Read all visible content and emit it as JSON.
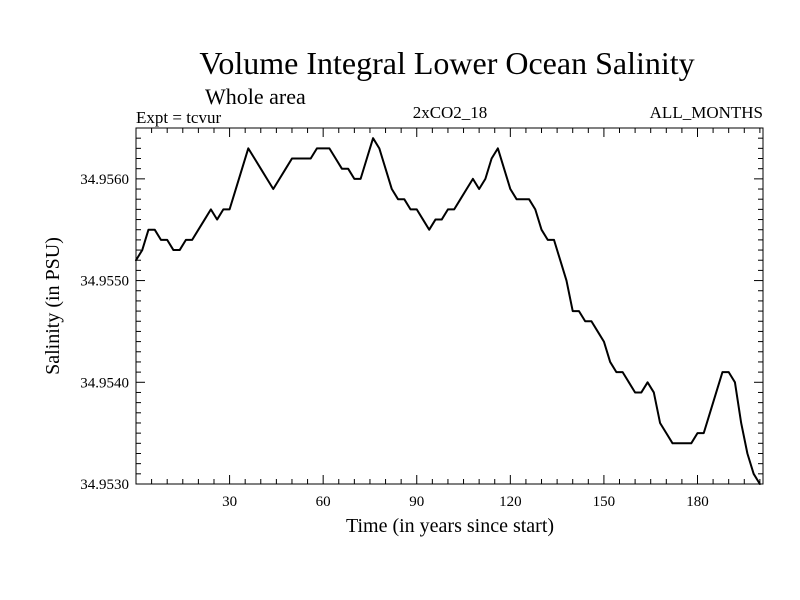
{
  "chart_data": {
    "type": "line",
    "title": "Volume Integral Lower Ocean Salinity",
    "subtitle": "Whole area",
    "expt_label": "Expt = tcvur",
    "run_label": "2xCO2_18",
    "months_label": "ALL_MONTHS",
    "xlabel": "Time (in years since start)",
    "ylabel": "Salinity (in PSU)",
    "xlim": [
      0,
      201
    ],
    "ylim": [
      34.953,
      34.9565
    ],
    "x_ticks": [
      30,
      60,
      90,
      120,
      150,
      180
    ],
    "x_tick_labels": [
      "30",
      "60",
      "90",
      "120",
      "150",
      "180"
    ],
    "y_ticks": [
      34.953,
      34.954,
      34.955,
      34.956
    ],
    "y_tick_labels": [
      "34.9530",
      "34.9540",
      "34.9550",
      "34.9560"
    ],
    "grid": false,
    "series": [
      {
        "x": [
          0,
          2,
          4,
          6,
          8,
          10,
          12,
          14,
          16,
          18,
          20,
          22,
          24,
          26,
          28,
          30,
          32,
          34,
          36,
          38,
          40,
          42,
          44,
          46,
          48,
          50,
          52,
          54,
          56,
          58,
          60,
          62,
          64,
          66,
          68,
          70,
          72,
          74,
          76,
          78,
          80,
          82,
          84,
          86,
          88,
          90,
          92,
          94,
          96,
          98,
          100,
          102,
          104,
          106,
          108,
          110,
          112,
          114,
          116,
          118,
          120,
          122,
          124,
          126,
          128,
          130,
          132,
          134,
          136,
          138,
          140,
          142,
          144,
          146,
          148,
          150,
          152,
          154,
          156,
          158,
          160,
          162,
          164,
          166,
          168,
          170,
          172,
          174,
          176,
          178,
          180,
          182,
          184,
          186,
          188,
          190,
          192,
          194,
          196,
          198,
          200
        ],
        "values": [
          34.9552,
          34.9553,
          34.9555,
          34.9555,
          34.9554,
          34.9554,
          34.9553,
          34.9553,
          34.9554,
          34.9554,
          34.9555,
          34.9556,
          34.9557,
          34.9556,
          34.9557,
          34.9557,
          34.9559,
          34.9561,
          34.9563,
          34.9562,
          34.9561,
          34.956,
          34.9559,
          34.956,
          34.9561,
          34.9562,
          34.9562,
          34.9562,
          34.9562,
          34.9563,
          34.9563,
          34.9563,
          34.9562,
          34.9561,
          34.9561,
          34.956,
          34.956,
          34.9562,
          34.9564,
          34.9563,
          34.9561,
          34.9559,
          34.9558,
          34.9558,
          34.9557,
          34.9557,
          34.9556,
          34.9555,
          34.9556,
          34.9556,
          34.9557,
          34.9557,
          34.9558,
          34.9559,
          34.956,
          34.9559,
          34.956,
          34.9562,
          34.9563,
          34.9561,
          34.9559,
          34.9558,
          34.9558,
          34.9558,
          34.9557,
          34.9555,
          34.9554,
          34.9554,
          34.9552,
          34.955,
          34.9547,
          34.9547,
          34.9546,
          34.9546,
          34.9545,
          34.9544,
          34.9542,
          34.9541,
          34.9541,
          34.954,
          34.9539,
          34.9539,
          34.954,
          34.9539,
          34.9536,
          34.9535,
          34.9534,
          34.9534,
          34.9534,
          34.9534,
          34.9535,
          34.9535,
          34.9537,
          34.9539,
          34.9541,
          34.9541,
          34.954,
          34.9536,
          34.9533,
          34.9531,
          34.953
        ]
      }
    ]
  }
}
